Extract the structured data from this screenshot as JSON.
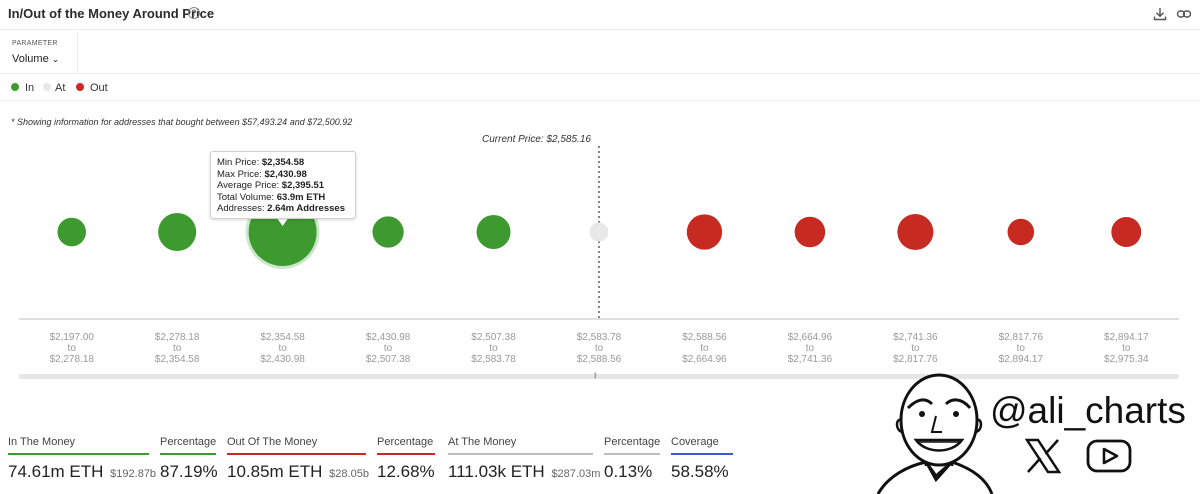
{
  "header": {
    "title": "In/Out of the Money Around Price",
    "help_icon": "question-circle-icon",
    "actions": [
      "download-icon",
      "link-icon"
    ]
  },
  "parameter": {
    "label": "PARAMETER",
    "value": "Volume",
    "chevron": "chevron-down-icon"
  },
  "legend": [
    {
      "label": "In",
      "color": "#3c9a2e"
    },
    {
      "label": "At",
      "color": "#e8e8e8"
    },
    {
      "label": "Out",
      "color": "#c62a20"
    }
  ],
  "note": "* Showing information for addresses that bought between $57,493.24 and $72,500.92",
  "current_price_label": "Current Price: $2,585.16",
  "tooltip": {
    "min_price_label": "Min Price:",
    "min_price": "$2,354.58",
    "max_price_label": "Max Price:",
    "max_price": "$2,430.98",
    "avg_price_label": "Average Price:",
    "avg_price": "$2,395.51",
    "volume_label": "Total Volume:",
    "volume": "63.9m ETH",
    "addresses_label": "Addresses:",
    "addresses": "2.64m Addresses"
  },
  "chart_data": {
    "type": "scatter",
    "current_price": 2585.16,
    "current_price_bucket_index": 5,
    "bubble_size_metric": "Volume",
    "buckets": [
      {
        "from": "$2,197.00",
        "to": "$2,278.18",
        "status": "In",
        "relative_size": 0.42
      },
      {
        "from": "$2,278.18",
        "to": "$2,354.58",
        "status": "In",
        "relative_size": 0.56
      },
      {
        "from": "$2,354.58",
        "to": "$2,430.98",
        "status": "In",
        "relative_size": 1.0,
        "volume_m_eth": 63.9,
        "addresses_m": 2.64
      },
      {
        "from": "$2,430.98",
        "to": "$2,507.38",
        "status": "In",
        "relative_size": 0.46
      },
      {
        "from": "$2,507.38",
        "to": "$2,583.78",
        "status": "In",
        "relative_size": 0.5
      },
      {
        "from": "$2,583.78",
        "to": "$2,588.56",
        "status": "At",
        "relative_size": 0.28
      },
      {
        "from": "$2,588.56",
        "to": "$2,664.96",
        "status": "Out",
        "relative_size": 0.52
      },
      {
        "from": "$2,664.96",
        "to": "$2,741.36",
        "status": "Out",
        "relative_size": 0.45
      },
      {
        "from": "$2,741.36",
        "to": "$2,817.76",
        "status": "Out",
        "relative_size": 0.53
      },
      {
        "from": "$2,817.76",
        "to": "$2,894.17",
        "status": "Out",
        "relative_size": 0.39
      },
      {
        "from": "$2,894.17",
        "to": "$2,975.34",
        "status": "Out",
        "relative_size": 0.44
      }
    ],
    "to_word": "to",
    "colors": {
      "In": "#3c9a2e",
      "At": "#e8e8e8",
      "Out": "#c62a20"
    }
  },
  "stats": [
    {
      "label": "In The Money",
      "value": "74.61m ETH",
      "sub": "$192.87b",
      "color": "#3c9a2e"
    },
    {
      "label": "Percentage",
      "value": "87.19%",
      "sub": "",
      "color": "#3c9a2e"
    },
    {
      "label": "Out Of The Money",
      "value": "10.85m ETH",
      "sub": "$28.05b",
      "color": "#c62a20"
    },
    {
      "label": "Percentage",
      "value": "12.68%",
      "sub": "",
      "color": "#c62a20"
    },
    {
      "label": "At The Money",
      "value": "111.03k ETH",
      "sub": "$287.03m",
      "color": "#bdbdbd"
    },
    {
      "label": "Percentage",
      "value": "0.13%",
      "sub": "",
      "color": "#bdbdbd"
    },
    {
      "label": "Coverage",
      "value": "58.58%",
      "sub": "",
      "color": "#3a5bd0"
    }
  ],
  "brand": {
    "handle": "@ali_charts",
    "icons": [
      "x-logo-icon",
      "youtube-icon",
      "portrait-illustration"
    ]
  }
}
